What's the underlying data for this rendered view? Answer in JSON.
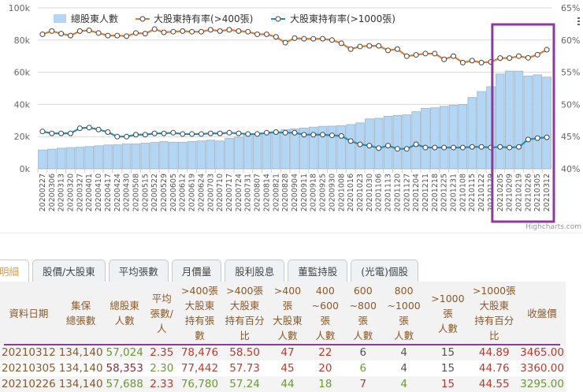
{
  "chart_data": {
    "type": "bar+line",
    "title": "",
    "legend": [
      "總股東人數",
      "大股東持有率(>400張)",
      "大股東持有率(>1000張)"
    ],
    "categories": [
      "20200227",
      "20200306",
      "20200313",
      "20200320",
      "20200327",
      "20200401",
      "20200410",
      "20200417",
      "20200424",
      "20200430",
      "20200508",
      "20200515",
      "20200522",
      "20200529",
      "20200605",
      "20200612",
      "20200619",
      "20200624",
      "20200703",
      "20200710",
      "20200717",
      "20200724",
      "20200731",
      "20200807",
      "20200814",
      "20200821",
      "20200828",
      "20200904",
      "20200911",
      "20200918",
      "20200925",
      "20200930",
      "20201008",
      "20201016",
      "20201023",
      "20201030",
      "20201106",
      "20201113",
      "20201120",
      "20201127",
      "20201204",
      "20201211",
      "20201218",
      "20201225",
      "20201231",
      "20210108",
      "20210115",
      "20210122",
      "20210129",
      "20210205",
      "20210209",
      "20210219",
      "20210226",
      "20210305",
      "20210312"
    ],
    "series": [
      {
        "name": "總股東人數",
        "type": "bar",
        "axis": "left",
        "color": "#b3d6f5",
        "values": [
          11.7,
          12.2,
          12.8,
          13.2,
          13.4,
          13.8,
          14.3,
          14.8,
          14.9,
          15.4,
          15.5,
          15.9,
          16.4,
          16.9,
          16.5,
          16.5,
          17.0,
          17.3,
          17.8,
          17.3,
          18.9,
          19.6,
          21.2,
          21.6,
          21.9,
          23.1,
          24.3,
          24.8,
          25.3,
          25.9,
          26.4,
          26.5,
          26.8,
          27.5,
          28.5,
          31.0,
          31.4,
          32.6,
          33.1,
          33.5,
          35.5,
          37.6,
          37.9,
          38.8,
          39.5,
          40.0,
          44.3,
          48.0,
          51.0,
          58.9,
          60.7,
          60.7,
          57.7,
          58.4,
          57.0
        ]
      },
      {
        "name": "大股東持有率(>400張)",
        "type": "line",
        "axis": "right",
        "color": "#e07b2e",
        "values": [
          60.9,
          61.4,
          61.0,
          60.7,
          61.4,
          61.5,
          61.1,
          60.7,
          60.7,
          60.6,
          61.1,
          61.0,
          61.7,
          61.2,
          61.3,
          61.4,
          61.3,
          61.3,
          61.6,
          61.4,
          61.6,
          61.4,
          61.3,
          60.9,
          60.9,
          60.5,
          59.6,
          60.3,
          60.2,
          60.2,
          60.2,
          60.0,
          59.5,
          58.6,
          59.0,
          59.1,
          59.1,
          58.4,
          58.6,
          57.5,
          57.7,
          57.9,
          57.9,
          57.0,
          57.5,
          56.5,
          56.8,
          56.5,
          56.6,
          57.2,
          57.2,
          57.5,
          57.24,
          57.73,
          58.5
        ]
      },
      {
        "name": "大股東持有率(>1000張)",
        "type": "line",
        "axis": "right",
        "color": "#1f8fb8",
        "values": [
          45.8,
          45.5,
          45.5,
          45.5,
          46.3,
          46.4,
          46.1,
          45.7,
          45.0,
          45.0,
          45.3,
          45.3,
          45.5,
          45.5,
          45.6,
          45.4,
          45.4,
          45.4,
          45.5,
          45.5,
          45.6,
          45.5,
          45.4,
          45.4,
          45.6,
          45.7,
          45.6,
          45.6,
          45.3,
          45.3,
          45.3,
          45.2,
          45.1,
          44.3,
          43.8,
          43.6,
          43.2,
          43.6,
          43.1,
          43.1,
          43.8,
          43.3,
          43.3,
          43.3,
          43.3,
          43.3,
          43.4,
          43.4,
          43.3,
          43.4,
          43.3,
          43.4,
          44.55,
          44.76,
          44.89
        ]
      }
    ],
    "yaxis_left": {
      "ticks": [
        "0k",
        "20k",
        "40k",
        "60k",
        "80k",
        "100k"
      ],
      "range": [
        0,
        100
      ]
    },
    "yaxis_right": {
      "ticks": [
        "40%",
        "45%",
        "50%",
        "55%",
        "60%",
        "65%"
      ],
      "range": [
        40,
        65
      ]
    },
    "grid": true,
    "legend_position": "top",
    "highlight_box": {
      "from": "20210205",
      "to": "20210312",
      "color": "#8e3a9c"
    },
    "credit": "Highcharts.com"
  },
  "tabs": [
    {
      "label": "明細",
      "active": true
    },
    {
      "label": "股價/大股東"
    },
    {
      "label": "平均張數"
    },
    {
      "label": "月價量"
    },
    {
      "label": "股利股息"
    },
    {
      "label": "董監持股"
    },
    {
      "label": "(光電)個股"
    }
  ],
  "table": {
    "headers": [
      [
        "資料日期"
      ],
      [
        "集保",
        "總張數"
      ],
      [
        "總股東",
        "人數"
      ],
      [
        "平均",
        "張數/人"
      ],
      [
        ">400張",
        "大股東",
        "持有張數"
      ],
      [
        ">400張",
        "大股東",
        "持有百分比"
      ],
      [
        ">400張",
        "大股東",
        "人數"
      ],
      [
        "400",
        "~600張",
        "人數"
      ],
      [
        "600",
        "~800張",
        "人數"
      ],
      [
        "800",
        "~1000張",
        "人數"
      ],
      [
        ">1000張",
        "人數"
      ],
      [
        ">1000張",
        "大股東",
        "持有百分比"
      ],
      [
        "收盤價"
      ]
    ],
    "rows": [
      {
        "cells": [
          "20210312",
          "134,140",
          "57,024",
          "2.35",
          "78,476",
          "58.50",
          "47",
          "22",
          "6",
          "4",
          "15",
          "44.89",
          "3465.00"
        ],
        "colors": [
          "brown",
          "brown",
          "green",
          "red",
          "red",
          "red",
          "red",
          "red",
          "gray",
          "gray",
          "gray",
          "red",
          "red"
        ]
      },
      {
        "cells": [
          "20210305",
          "134,140",
          "58,353",
          "2.30",
          "77,442",
          "57.73",
          "45",
          "20",
          "6",
          "4",
          "15",
          "44.76",
          "3360.00"
        ],
        "colors": [
          "brown",
          "brown",
          "maroon",
          "green",
          "red",
          "red",
          "red",
          "red",
          "green",
          "gray",
          "gray",
          "red",
          "red"
        ]
      },
      {
        "cells": [
          "20210226",
          "134,140",
          "57,688",
          "2.33",
          "76,780",
          "57.24",
          "44",
          "18",
          "7",
          "4",
          "15",
          "44.55",
          "3295.00"
        ],
        "colors": [
          "brown",
          "brown",
          "green",
          "red",
          "green",
          "green",
          "green",
          "green",
          "red",
          "green",
          "red",
          "red",
          "green"
        ]
      }
    ]
  }
}
